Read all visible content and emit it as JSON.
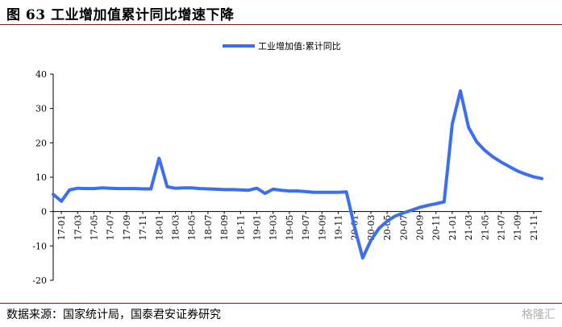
{
  "title": "图 63  工业增加值累计同比增速下降",
  "source": "数据来源：国家统计局，国泰君安证券研究",
  "watermark": "格隆汇",
  "chart_data": {
    "type": "line",
    "title": "",
    "xlabel": "",
    "ylabel": "",
    "ylim": [
      -20,
      40
    ],
    "yticks": [
      -20,
      -10,
      0,
      10,
      20,
      30,
      40
    ],
    "grid": false,
    "legend_position": "top-right",
    "x_tick_labels": [
      "17-01",
      "17-03",
      "17-05",
      "17-07",
      "17-09",
      "17-11",
      "18-01",
      "18-03",
      "18-05",
      "18-07",
      "18-09",
      "18-11",
      "19-01",
      "19-03",
      "19-05",
      "19-07",
      "19-09",
      "19-11",
      "20-01",
      "20-03",
      "20-05",
      "20-07",
      "20-09",
      "20-11",
      "21-01",
      "21-03",
      "21-05",
      "21-07",
      "21-09",
      "21-11"
    ],
    "series": [
      {
        "name": "工业增加值:累计同比",
        "color": "#3a6ff2",
        "x": [
          "16-12",
          "17-01",
          "17-02",
          "17-03",
          "17-04",
          "17-05",
          "17-06",
          "17-07",
          "17-08",
          "17-09",
          "17-10",
          "17-11",
          "17-12",
          "18-01",
          "18-02",
          "18-03",
          "18-04",
          "18-05",
          "18-06",
          "18-07",
          "18-08",
          "18-09",
          "18-10",
          "18-11",
          "18-12",
          "19-01",
          "19-02",
          "19-03",
          "19-04",
          "19-05",
          "19-06",
          "19-07",
          "19-08",
          "19-09",
          "19-10",
          "19-11",
          "19-12",
          "20-01",
          "20-02",
          "20-03",
          "20-04",
          "20-05",
          "20-06",
          "20-07",
          "20-08",
          "20-09",
          "20-10",
          "20-11",
          "20-12",
          "21-01",
          "21-02",
          "21-03",
          "21-04",
          "21-05",
          "21-06",
          "21-07",
          "21-08",
          "21-09",
          "21-10",
          "21-11",
          "21-12"
        ],
        "values": [
          5.0,
          3.0,
          6.3,
          6.8,
          6.7,
          6.7,
          6.9,
          6.8,
          6.7,
          6.7,
          6.7,
          6.6,
          6.6,
          15.5,
          7.2,
          6.8,
          6.9,
          6.9,
          6.7,
          6.6,
          6.5,
          6.4,
          6.4,
          6.3,
          6.2,
          6.8,
          5.3,
          6.5,
          6.2,
          6.0,
          6.0,
          5.8,
          5.6,
          5.6,
          5.6,
          5.6,
          5.7,
          -4.5,
          -13.5,
          -8.4,
          -4.9,
          -2.8,
          -1.3,
          -0.4,
          0.4,
          1.2,
          1.8,
          2.3,
          2.8,
          25.5,
          35.1,
          24.5,
          20.3,
          17.8,
          15.9,
          14.4,
          13.1,
          11.8,
          10.9,
          10.1,
          9.6
        ]
      }
    ]
  }
}
